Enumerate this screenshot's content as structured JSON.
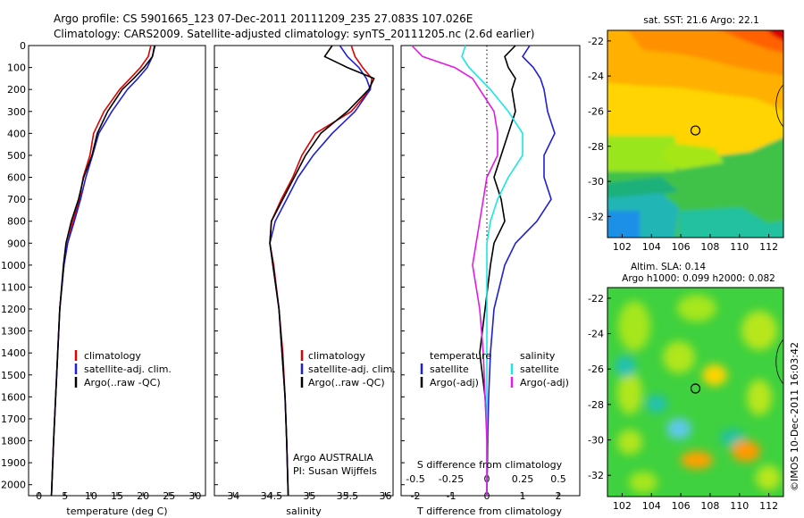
{
  "header": {
    "line1": "Argo profile: CS 5901665_123 07-Dec-2011 20111209_235 27.083S 107.026E",
    "line2": "Climatology: CARS2009. Satellite-adjusted climatology: synTS_20111205.nc (2.6d earlier)"
  },
  "colors": {
    "climatology": "#e00000",
    "satellite": "#1f1fd6",
    "argo": "#000000",
    "salinity_satellite": "#19e6e6",
    "salinity_argo": "#e619e6"
  },
  "chart_data": [
    {
      "type": "line",
      "xlabel": "temperature (deg C)",
      "ylabel": "",
      "xlim": [
        -2,
        32
      ],
      "ylim": [
        2050,
        0
      ],
      "xticks": [
        0,
        5,
        10,
        15,
        20,
        25,
        30
      ],
      "yticks": [
        0,
        100,
        200,
        300,
        400,
        500,
        600,
        700,
        800,
        900,
        1000,
        1100,
        1200,
        1300,
        1400,
        1500,
        1600,
        1700,
        1800,
        1900,
        2000
      ],
      "legend": [
        "climatology",
        "satellite-adj. clim.",
        "Argo(..raw -QC)"
      ],
      "series": [
        {
          "name": "climatology",
          "color": "#e00000",
          "y": [
            0,
            50,
            100,
            150,
            200,
            300,
            400,
            500,
            600,
            700,
            800,
            900,
            1000,
            1200,
            1400,
            1600,
            1800,
            2050
          ],
          "x": [
            21.5,
            21.0,
            19.5,
            17.5,
            15.5,
            12.5,
            10.5,
            9.8,
            8.5,
            7.8,
            6.5,
            5.5,
            4.8,
            4.0,
            3.6,
            3.2,
            2.8,
            2.4
          ]
        },
        {
          "name": "satellite-adj. clim.",
          "color": "#1f1fd6",
          "y": [
            0,
            50,
            100,
            150,
            200,
            300,
            400,
            500,
            600,
            700,
            800,
            900,
            1000,
            1200,
            1400,
            1600,
            1800,
            2050
          ],
          "x": [
            22.2,
            21.8,
            20.8,
            19.0,
            17.0,
            14.0,
            11.5,
            10.3,
            9.0,
            8.0,
            6.8,
            5.5,
            4.8,
            4.0,
            3.6,
            3.2,
            2.8,
            2.4
          ]
        },
        {
          "name": "Argo(..raw -QC)",
          "color": "#000000",
          "y": [
            0,
            50,
            100,
            150,
            200,
            300,
            400,
            500,
            600,
            700,
            800,
            900,
            1000,
            1200,
            1400,
            1600,
            1800,
            2050
          ],
          "x": [
            22.3,
            21.8,
            20.2,
            18.2,
            16.0,
            13.2,
            11.2,
            10.2,
            8.6,
            7.6,
            6.2,
            5.2,
            4.7,
            4.0,
            3.6,
            3.2,
            2.8,
            2.4
          ]
        }
      ]
    },
    {
      "type": "line",
      "xlabel": "salinity",
      "ylabel": "",
      "xlim": [
        33.75,
        36.1
      ],
      "ylim": [
        2050,
        0
      ],
      "xticks": [
        34,
        34.5,
        35,
        35.5,
        36
      ],
      "legend": [
        "climatology",
        "satellite-adj. clim.",
        "Argo(..raw -QC)"
      ],
      "annotations": [
        "Argo AUSTRALIA",
        "PI: Susan Wijffels"
      ],
      "series": [
        {
          "name": "climatology",
          "color": "#e00000",
          "y": [
            0,
            50,
            100,
            150,
            200,
            300,
            400,
            500,
            600,
            700,
            800,
            900,
            1000,
            1200,
            1400,
            1600,
            1800,
            2050
          ],
          "x": [
            35.55,
            35.6,
            35.7,
            35.82,
            35.8,
            35.55,
            35.08,
            34.9,
            34.78,
            34.63,
            34.5,
            34.48,
            34.53,
            34.6,
            34.65,
            34.68,
            34.7,
            34.72
          ]
        },
        {
          "name": "satellite-adj. clim.",
          "color": "#1f1fd6",
          "y": [
            0,
            50,
            100,
            150,
            200,
            300,
            400,
            500,
            600,
            700,
            800,
            900,
            1000,
            1200,
            1400,
            1600,
            1800,
            2050
          ],
          "x": [
            35.4,
            35.5,
            35.65,
            35.75,
            35.8,
            35.6,
            35.3,
            35.05,
            34.85,
            34.7,
            34.55,
            34.48,
            34.52,
            34.6,
            34.64,
            34.68,
            34.7,
            34.72
          ]
        },
        {
          "name": "Argo(..raw -QC)",
          "color": "#000000",
          "y": [
            0,
            50,
            100,
            150,
            200,
            300,
            400,
            500,
            600,
            700,
            800,
            900,
            1000,
            1200,
            1400,
            1600,
            1800,
            2050
          ],
          "x": [
            35.3,
            35.2,
            35.5,
            35.85,
            35.78,
            35.5,
            35.15,
            34.95,
            34.8,
            34.65,
            34.5,
            34.48,
            34.52,
            34.6,
            34.64,
            34.68,
            34.7,
            34.72
          ]
        }
      ]
    },
    {
      "type": "line",
      "xlabel": "T difference from climatology",
      "xlabel2": "S difference from climatology",
      "ylabel": "",
      "xlim": [
        -2.4,
        2.6
      ],
      "ylim": [
        2050,
        0
      ],
      "xticks_T": [
        -2,
        -1,
        0,
        1,
        2
      ],
      "xticks_S": [
        -0.5,
        -0.25,
        0,
        0.25,
        0.5
      ],
      "legend_temperature": [
        "temperature",
        "satellite",
        "Argo(-adj)"
      ],
      "legend_salinity": [
        "salinity",
        "satellite",
        "Argo(-adj)"
      ],
      "series": [
        {
          "name": "satellite",
          "color": "#1f1fd6",
          "y": [
            0,
            50,
            100,
            150,
            200,
            300,
            400,
            500,
            600,
            700,
            800,
            900,
            1000,
            1200,
            1400,
            1600,
            1800,
            2050
          ],
          "x": [
            1.2,
            1.0,
            1.3,
            1.5,
            1.6,
            1.7,
            1.9,
            1.6,
            1.6,
            1.8,
            1.4,
            0.8,
            0.5,
            0.2,
            0.1,
            0.05,
            0.02,
            0.0
          ]
        },
        {
          "name": "Argo(-adj)",
          "color": "#000000",
          "y": [
            0,
            50,
            100,
            150,
            200,
            300,
            400,
            500,
            600,
            700,
            800,
            900,
            1000,
            1200,
            1400,
            1600,
            1800,
            2050
          ],
          "x": [
            0.8,
            0.5,
            0.6,
            0.8,
            0.7,
            0.8,
            0.6,
            0.4,
            0.2,
            0.4,
            0.5,
            0.2,
            0.1,
            -0.05,
            -0.2,
            -0.05,
            0.02,
            0.0
          ]
        },
        {
          "name": "satellite (salinity)",
          "color": "#19e6e6",
          "y": [
            0,
            50,
            100,
            150,
            200,
            300,
            400,
            500,
            600,
            700,
            800,
            900,
            1000,
            1200,
            1400,
            1600,
            1800,
            2050
          ],
          "x": [
            -0.6,
            -0.7,
            -0.5,
            -0.2,
            0.1,
            0.6,
            1.0,
            1.0,
            0.6,
            0.3,
            0.1,
            0.0,
            0.0,
            0.0,
            0.0,
            0.0,
            0.0,
            0.0
          ]
        },
        {
          "name": "Argo(-adj) (salinity)",
          "color": "#e619e6",
          "y": [
            0,
            50,
            100,
            150,
            200,
            300,
            400,
            500,
            600,
            700,
            800,
            900,
            1000,
            1200,
            1400,
            1600,
            1800,
            2050
          ],
          "x": [
            -2.1,
            -1.8,
            -0.9,
            -0.4,
            -0.2,
            0.2,
            0.3,
            0.3,
            0.0,
            -0.1,
            -0.2,
            -0.3,
            -0.4,
            -0.2,
            -0.1,
            -0.05,
            0.0,
            0.0
          ]
        }
      ]
    },
    {
      "type": "heatmap",
      "title": "sat. SST: 21.6 Argo: 22.1",
      "xticks": [
        102,
        104,
        106,
        108,
        110,
        112
      ],
      "yticks": [
        -22,
        -24,
        -26,
        -28,
        -30,
        -32
      ],
      "xlim": [
        101,
        113
      ],
      "ylim": [
        -33.2,
        -21.4
      ],
      "marker": {
        "lon": 107.0,
        "lat": -27.1
      }
    },
    {
      "type": "heatmap",
      "title": "Altim. SLA: 0.14",
      "subtitle": "Argo h1000: 0.099 h2000: 0.082",
      "xticks": [
        102,
        104,
        106,
        108,
        110,
        112
      ],
      "yticks": [
        -22,
        -24,
        -26,
        -28,
        -30,
        -32
      ],
      "xlim": [
        101,
        113
      ],
      "ylim": [
        -33.2,
        -21.4
      ],
      "marker": {
        "lon": 107.0,
        "lat": -27.1
      }
    }
  ],
  "side_label": "©IMOS 10-Dec-2011 16:03:42"
}
